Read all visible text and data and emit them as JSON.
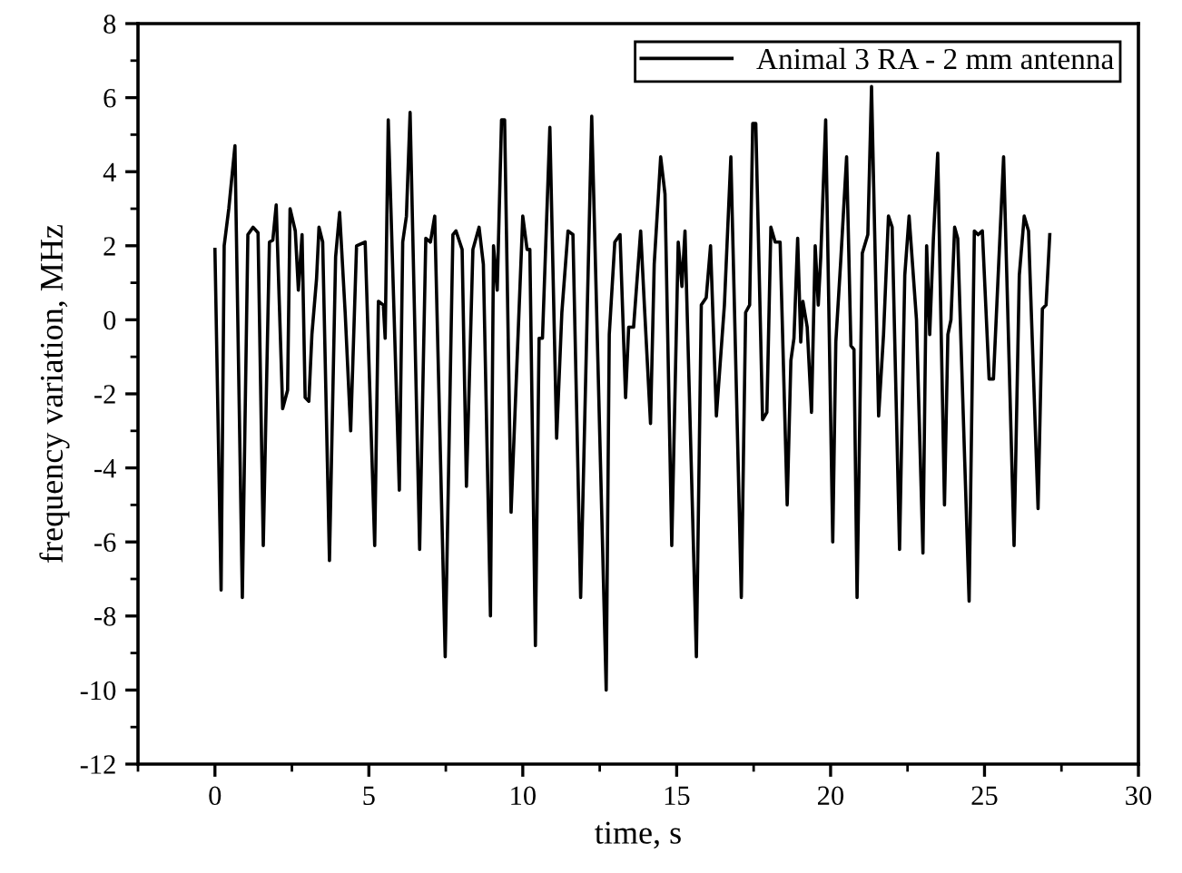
{
  "chart_data": {
    "type": "line",
    "xlabel": "time, s",
    "ylabel": "frequency variation, MHz",
    "xlim": [
      -2.5,
      30
    ],
    "ylim": [
      -12,
      8
    ],
    "xticks": [
      {
        "value": -2.5,
        "label": null
      },
      0,
      {
        "value": 2.5,
        "label": null
      },
      5,
      {
        "value": 7.5,
        "label": null
      },
      10,
      {
        "value": 12.5,
        "label": null
      },
      15,
      {
        "value": 17.5,
        "label": null
      },
      20,
      {
        "value": 22.5,
        "label": null
      },
      25,
      {
        "value": 27.5,
        "label": null
      },
      30
    ],
    "yticks": [
      -12,
      {
        "value": -11,
        "label": null
      },
      -10,
      {
        "value": -9,
        "label": null
      },
      -8,
      {
        "value": -7,
        "label": null
      },
      -6,
      {
        "value": -5,
        "label": null
      },
      -4,
      {
        "value": -3,
        "label": null
      },
      -2,
      {
        "value": -1,
        "label": null
      },
      0,
      {
        "value": 1,
        "label": null
      },
      2,
      {
        "value": 3,
        "label": null
      },
      4,
      {
        "value": 5,
        "label": null
      },
      6,
      {
        "value": 7,
        "label": null
      },
      8
    ],
    "grid": false,
    "legend": "top right",
    "marker": "none",
    "line_style": "solid",
    "series": [
      {
        "name": "Animal 3 RA - 2 mm antenna",
        "color": "#000000",
        "x": [
          0,
          0.2,
          0.3,
          0.45,
          0.65,
          0.89,
          1.07,
          1.24,
          1.4,
          1.57,
          1.77,
          1.88,
          1.99,
          2.2,
          2.36,
          2.44,
          2.61,
          2.71,
          2.83,
          2.93,
          3.05,
          3.15,
          3.3,
          3.38,
          3.5,
          3.72,
          3.92,
          4.05,
          4.23,
          4.41,
          4.6,
          4.88,
          5.19,
          5.31,
          5.47,
          5.53,
          5.63,
          5.99,
          6.1,
          6.22,
          6.34,
          6.65,
          6.85,
          7.0,
          7.14,
          7.48,
          7.73,
          7.83,
          8.03,
          8.17,
          8.38,
          8.58,
          8.72,
          8.95,
          9.05,
          9.17,
          9.31,
          9.41,
          9.62,
          10.0,
          10.14,
          10.23,
          10.41,
          10.53,
          10.64,
          10.88,
          11.1,
          11.27,
          11.47,
          11.63,
          11.88,
          12.24,
          12.71,
          12.81,
          12.99,
          13.16,
          13.34,
          13.44,
          13.6,
          13.83,
          13.95,
          14.15,
          14.27,
          14.48,
          14.62,
          14.84,
          15.05,
          15.17,
          15.27,
          15.64,
          15.8,
          15.96,
          16.1,
          16.29,
          16.55,
          16.76,
          17.1,
          17.24,
          17.37,
          17.47,
          17.57,
          17.79,
          17.93,
          18.06,
          18.2,
          18.36,
          18.59,
          18.71,
          18.81,
          18.93,
          19.03,
          19.1,
          19.24,
          19.38,
          19.5,
          19.6,
          19.68,
          19.84,
          20.07,
          20.17,
          20.33,
          20.52,
          20.66,
          20.76,
          20.86,
          21.03,
          21.21,
          21.33,
          21.56,
          21.72,
          21.88,
          22.0,
          22.24,
          22.41,
          22.55,
          22.79,
          23.0,
          23.12,
          23.22,
          23.34,
          23.48,
          23.7,
          23.81,
          23.91,
          24.03,
          24.13,
          24.5,
          24.67,
          24.79,
          24.93,
          25.15,
          25.29,
          25.62,
          25.96,
          26.13,
          26.29,
          26.43,
          26.74,
          26.88,
          27.0,
          27.12
        ],
        "values": [
          1.9,
          -7.3,
          2.0,
          3.0,
          4.7,
          -7.5,
          2.3,
          2.5,
          2.35,
          -6.1,
          2.1,
          2.15,
          3.1,
          -2.4,
          -1.9,
          3.0,
          2.4,
          0.8,
          2.3,
          -2.1,
          -2.2,
          -0.4,
          1.1,
          2.5,
          2.1,
          -6.5,
          1.7,
          2.9,
          0.2,
          -3.0,
          2.0,
          2.1,
          -6.1,
          0.5,
          0.4,
          -0.5,
          5.4,
          -4.6,
          2.1,
          2.8,
          5.6,
          -6.2,
          2.2,
          2.1,
          2.8,
          -9.1,
          2.3,
          2.4,
          1.9,
          -4.5,
          1.9,
          2.5,
          1.5,
          -8.0,
          2.0,
          0.8,
          5.4,
          5.4,
          -5.2,
          2.8,
          1.9,
          1.9,
          -8.8,
          -0.5,
          -0.5,
          5.2,
          -3.2,
          0.2,
          2.4,
          2.3,
          -7.5,
          5.5,
          -10.0,
          -0.4,
          2.1,
          2.3,
          -2.1,
          -0.2,
          -0.2,
          2.4,
          0.4,
          -2.8,
          1.5,
          4.4,
          3.4,
          -6.1,
          2.1,
          0.9,
          2.4,
          -9.1,
          0.4,
          0.6,
          2.0,
          -2.6,
          0.4,
          4.4,
          -7.5,
          0.2,
          0.4,
          5.3,
          5.3,
          -2.7,
          -2.5,
          2.5,
          2.1,
          2.1,
          -5.0,
          -1.1,
          -0.5,
          2.2,
          -0.6,
          0.5,
          -0.2,
          -2.5,
          2.0,
          0.4,
          1.7,
          5.4,
          -6.0,
          -0.6,
          1.6,
          4.4,
          -0.7,
          -0.8,
          -7.5,
          1.8,
          2.3,
          6.3,
          -2.6,
          -0.4,
          2.8,
          2.5,
          -6.2,
          1.2,
          2.8,
          0.0,
          -6.3,
          2.0,
          -0.4,
          2.2,
          4.5,
          -5.0,
          -0.4,
          0.0,
          2.5,
          2.2,
          -7.6,
          2.4,
          2.3,
          2.4,
          -1.6,
          -1.6,
          4.4,
          -6.1,
          1.2,
          2.8,
          2.4,
          -5.1,
          0.3,
          0.4,
          2.3
        ]
      }
    ]
  }
}
